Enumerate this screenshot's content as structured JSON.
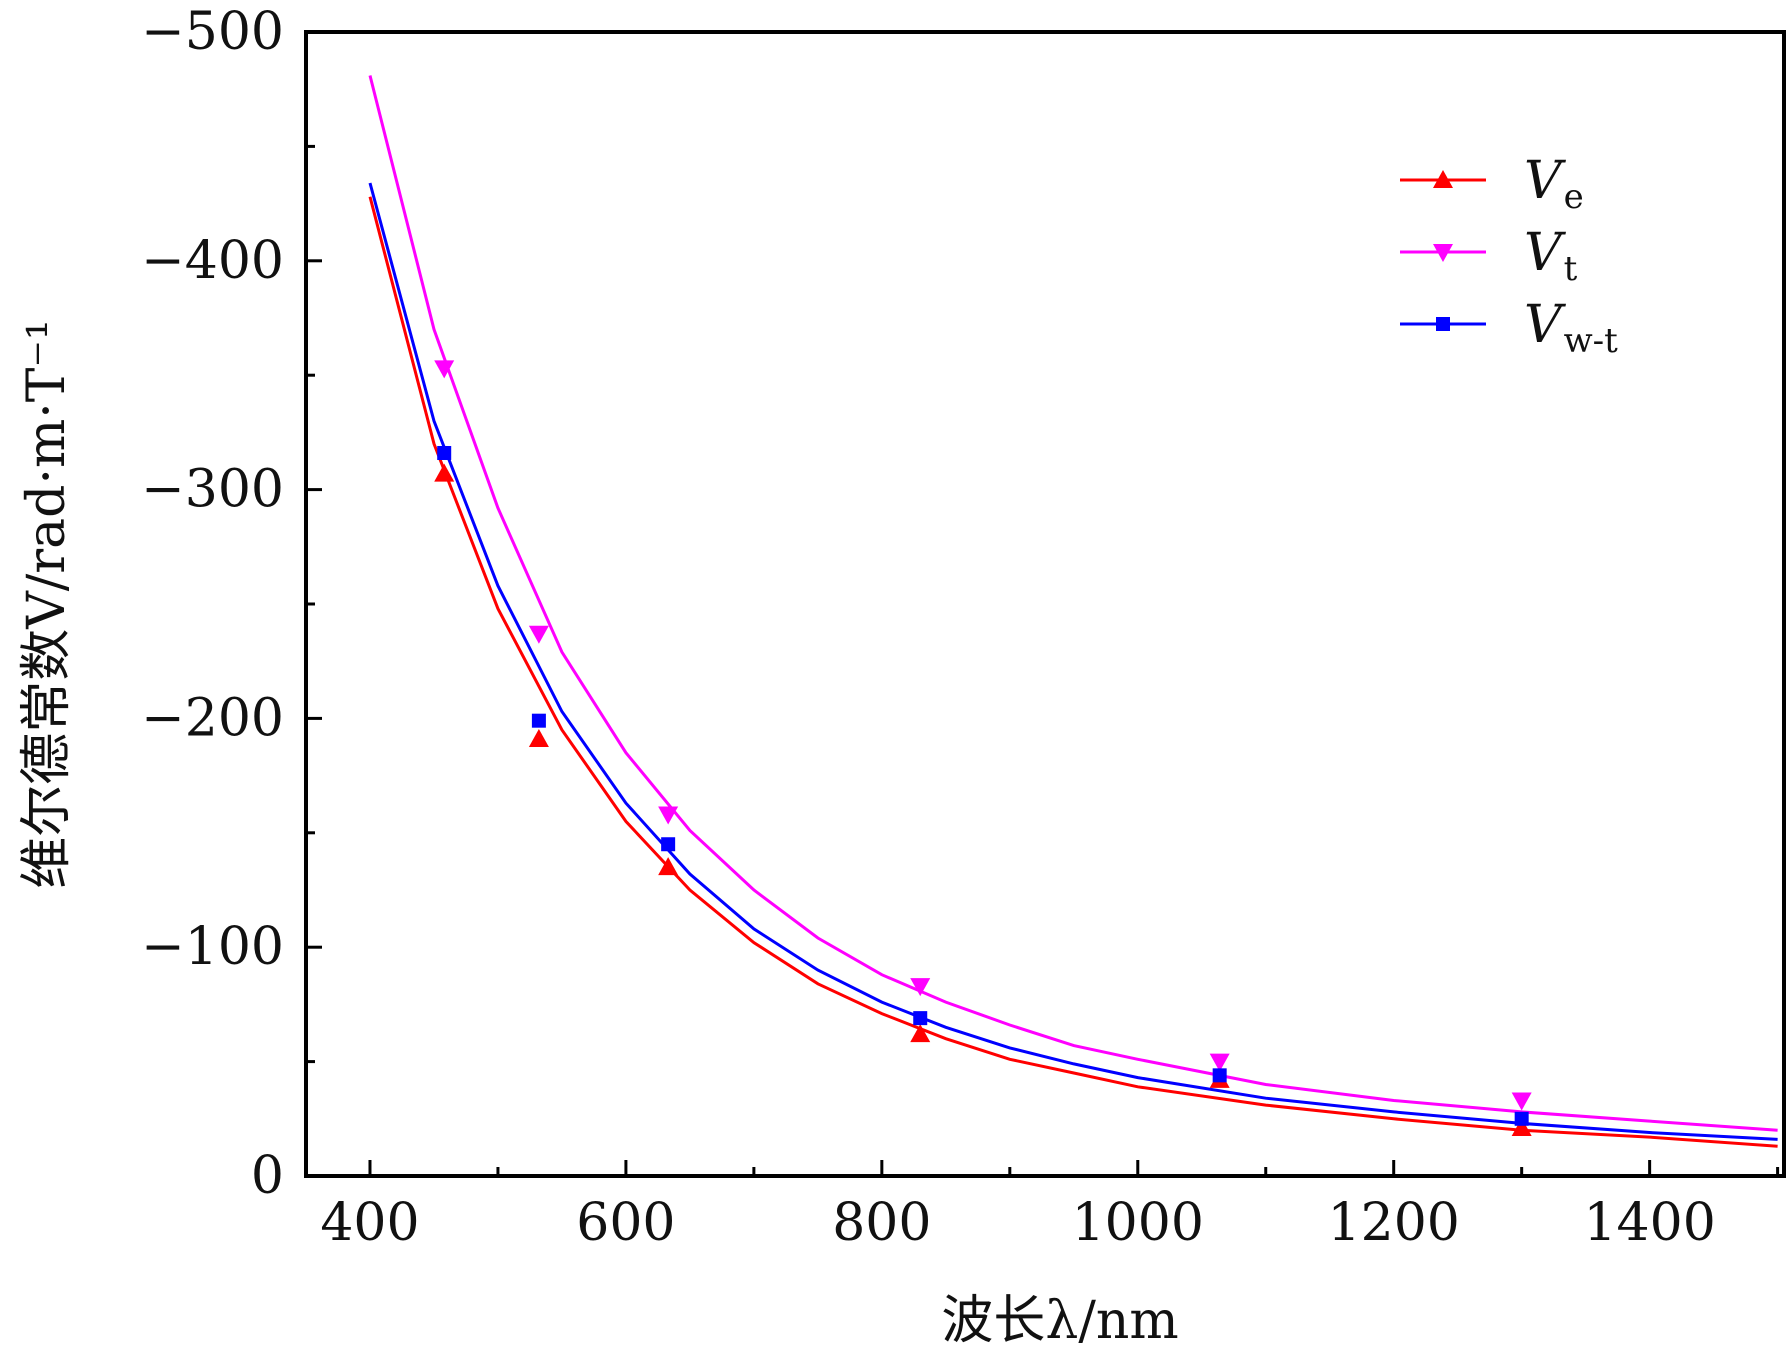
{
  "chart_data": {
    "type": "line",
    "xlabel": "波长λ/nm",
    "ylabel": "维尔德常数V/rad·m·T⁻¹",
    "xlim": [
      350,
      1505
    ],
    "ylim": [
      0,
      -500
    ],
    "y_axis_inverted": true,
    "x_ticks": [
      400,
      600,
      800,
      1000,
      1200,
      1400
    ],
    "x_tick_labels": [
      "400",
      "600",
      "800",
      "1000",
      "1200",
      "1400"
    ],
    "y_ticks": [
      0,
      -100,
      -200,
      -300,
      -400,
      -500
    ],
    "y_tick_labels": [
      "0",
      "−100",
      "−200",
      "−300",
      "−400",
      "−500"
    ],
    "grid": false,
    "legend_position": "top-right",
    "series": [
      {
        "name": "V_e",
        "legend_main": "V",
        "legend_sub": "e",
        "color": "#ff0000",
        "marker": "triangle-up",
        "points": [
          {
            "x": 458,
            "y": -307
          },
          {
            "x": 532,
            "y": -191
          },
          {
            "x": 633,
            "y": -135
          },
          {
            "x": 830,
            "y": -62
          },
          {
            "x": 1064,
            "y": -42
          },
          {
            "x": 1300,
            "y": -21
          }
        ],
        "curve": [
          {
            "x": 400,
            "y": -428
          },
          {
            "x": 450,
            "y": -320
          },
          {
            "x": 500,
            "y": -248
          },
          {
            "x": 550,
            "y": -195
          },
          {
            "x": 600,
            "y": -155
          },
          {
            "x": 650,
            "y": -125
          },
          {
            "x": 700,
            "y": -102
          },
          {
            "x": 750,
            "y": -84
          },
          {
            "x": 800,
            "y": -71
          },
          {
            "x": 850,
            "y": -60
          },
          {
            "x": 900,
            "y": -51
          },
          {
            "x": 950,
            "y": -45
          },
          {
            "x": 1000,
            "y": -39
          },
          {
            "x": 1100,
            "y": -31
          },
          {
            "x": 1200,
            "y": -25
          },
          {
            "x": 1300,
            "y": -20
          },
          {
            "x": 1400,
            "y": -17
          },
          {
            "x": 1500,
            "y": -13
          }
        ]
      },
      {
        "name": "V_t",
        "legend_main": "V",
        "legend_sub": "t",
        "color": "#ff00ff",
        "marker": "triangle-down",
        "points": [
          {
            "x": 458,
            "y": -353
          },
          {
            "x": 532,
            "y": -237
          },
          {
            "x": 633,
            "y": -158
          },
          {
            "x": 830,
            "y": -83
          },
          {
            "x": 1064,
            "y": -50
          },
          {
            "x": 1300,
            "y": -33
          }
        ],
        "curve": [
          {
            "x": 400,
            "y": -481
          },
          {
            "x": 450,
            "y": -370
          },
          {
            "x": 500,
            "y": -292
          },
          {
            "x": 550,
            "y": -229
          },
          {
            "x": 600,
            "y": -185
          },
          {
            "x": 650,
            "y": -151
          },
          {
            "x": 700,
            "y": -125
          },
          {
            "x": 750,
            "y": -104
          },
          {
            "x": 800,
            "y": -88
          },
          {
            "x": 850,
            "y": -76
          },
          {
            "x": 900,
            "y": -66
          },
          {
            "x": 950,
            "y": -57
          },
          {
            "x": 1000,
            "y": -51
          },
          {
            "x": 1100,
            "y": -40
          },
          {
            "x": 1200,
            "y": -33
          },
          {
            "x": 1300,
            "y": -28
          },
          {
            "x": 1400,
            "y": -24
          },
          {
            "x": 1500,
            "y": -20
          }
        ]
      },
      {
        "name": "V_w-t",
        "legend_main": "V",
        "legend_sub": "w-t",
        "color": "#0000ff",
        "marker": "square",
        "points": [
          {
            "x": 458,
            "y": -316
          },
          {
            "x": 532,
            "y": -199
          },
          {
            "x": 633,
            "y": -145
          },
          {
            "x": 830,
            "y": -69
          },
          {
            "x": 1064,
            "y": -44
          },
          {
            "x": 1300,
            "y": -25
          }
        ],
        "curve": [
          {
            "x": 400,
            "y": -434
          },
          {
            "x": 450,
            "y": -330
          },
          {
            "x": 500,
            "y": -258
          },
          {
            "x": 550,
            "y": -203
          },
          {
            "x": 600,
            "y": -163
          },
          {
            "x": 650,
            "y": -132
          },
          {
            "x": 700,
            "y": -108
          },
          {
            "x": 750,
            "y": -90
          },
          {
            "x": 800,
            "y": -76
          },
          {
            "x": 850,
            "y": -65
          },
          {
            "x": 900,
            "y": -56
          },
          {
            "x": 950,
            "y": -49
          },
          {
            "x": 1000,
            "y": -43
          },
          {
            "x": 1100,
            "y": -34
          },
          {
            "x": 1200,
            "y": -28
          },
          {
            "x": 1300,
            "y": -23
          },
          {
            "x": 1400,
            "y": -19
          },
          {
            "x": 1500,
            "y": -16
          }
        ]
      }
    ]
  }
}
